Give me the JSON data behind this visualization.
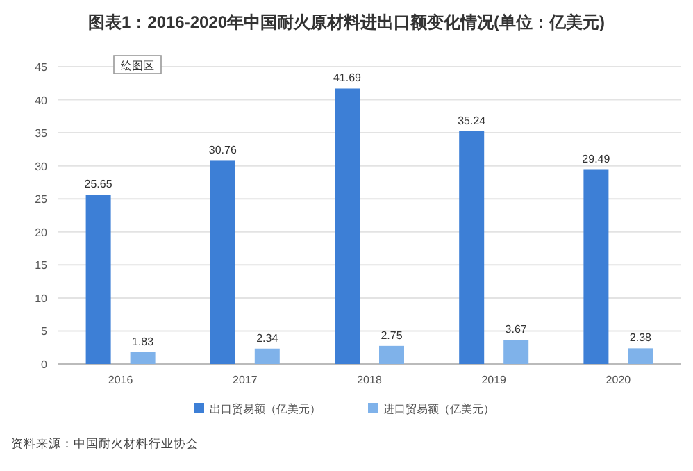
{
  "chart_data": {
    "type": "bar",
    "title": "图表1：2016-2020年中国耐火原材料进出口额变化情况(单位：亿美元)",
    "categories": [
      "2016",
      "2017",
      "2018",
      "2019",
      "2020"
    ],
    "series": [
      {
        "name": "出口贸易额（亿美元）",
        "color": "#3d7fd6",
        "values": [
          25.65,
          30.76,
          41.69,
          35.24,
          29.49
        ]
      },
      {
        "name": "进口贸易额（亿美元）",
        "color": "#7fb2ea",
        "values": [
          1.83,
          2.34,
          2.75,
          3.67,
          2.38
        ]
      }
    ],
    "ylim": [
      0,
      45
    ],
    "yticks": [
      0,
      5,
      10,
      15,
      20,
      25,
      30,
      35,
      40,
      45
    ],
    "grid": "y",
    "legend": "bottom",
    "data_labels": true,
    "annotations": [
      "绘图区",
      "资料来源：中国耐火材料行业协会"
    ]
  }
}
